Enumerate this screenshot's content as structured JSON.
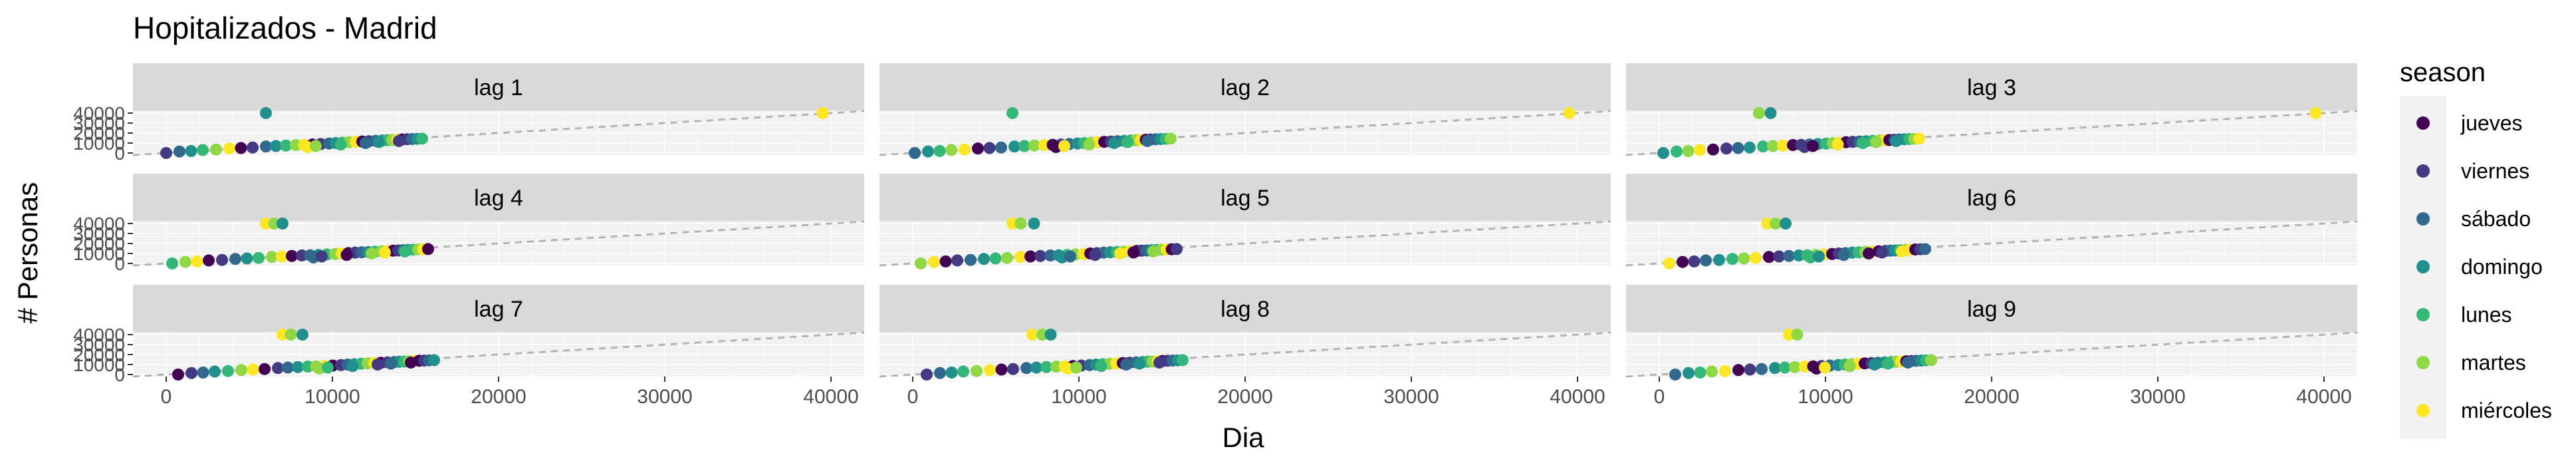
{
  "chart_data": {
    "type": "scatter",
    "title": "Hopitalizados - Madrid",
    "xlabel": "Dia",
    "ylabel": "# Personas",
    "xlim": [
      -2000,
      42000
    ],
    "ylim": [
      -2000,
      42000
    ],
    "x_ticks": [
      0,
      10000,
      20000,
      30000,
      40000
    ],
    "x_tick_labels": [
      "0",
      "10000",
      "20000",
      "30000",
      "40000"
    ],
    "y_ticks": [
      0,
      10000,
      20000,
      30000,
      40000
    ],
    "y_tick_labels": [
      "0",
      "10000",
      "20000",
      "30000",
      "40000"
    ],
    "grid": true,
    "reference_line": "y = x (dashed)",
    "legend": {
      "title": "season",
      "position": "right",
      "entries": [
        "jueves",
        "viernes",
        "sábado",
        "domingo",
        "lunes",
        "martes",
        "miércoles"
      ],
      "colors": [
        "#440154",
        "#443A83",
        "#31688E",
        "#21908C",
        "#35B779",
        "#8FD744",
        "#FDE725"
      ]
    },
    "panels": [
      {
        "label": "lag 1",
        "outliers": [
          {
            "x": 6000,
            "y": 40000,
            "s": 3
          },
          {
            "x": 39500,
            "y": 40000,
            "s": 6
          }
        ]
      },
      {
        "label": "lag 2",
        "outliers": [
          {
            "x": 6000,
            "y": 40000,
            "s": 4
          },
          {
            "x": 39500,
            "y": 40000,
            "s": 6
          }
        ]
      },
      {
        "label": "lag 3",
        "outliers": [
          {
            "x": 6000,
            "y": 40000,
            "s": 5
          },
          {
            "x": 6700,
            "y": 40000,
            "s": 3
          },
          {
            "x": 39500,
            "y": 40000,
            "s": 6
          }
        ]
      },
      {
        "label": "lag 4",
        "outliers": [
          {
            "x": 6000,
            "y": 40000,
            "s": 6
          },
          {
            "x": 6500,
            "y": 40000,
            "s": 5
          },
          {
            "x": 7000,
            "y": 40000,
            "s": 3
          }
        ]
      },
      {
        "label": "lag 5",
        "outliers": [
          {
            "x": 6000,
            "y": 40000,
            "s": 6
          },
          {
            "x": 6500,
            "y": 40000,
            "s": 5
          },
          {
            "x": 7300,
            "y": 40000,
            "s": 3
          }
        ]
      },
      {
        "label": "lag 6",
        "outliers": [
          {
            "x": 6500,
            "y": 40000,
            "s": 6
          },
          {
            "x": 7000,
            "y": 40000,
            "s": 5
          },
          {
            "x": 7600,
            "y": 40000,
            "s": 3
          }
        ]
      },
      {
        "label": "lag 7",
        "outliers": [
          {
            "x": 7000,
            "y": 40000,
            "s": 6
          },
          {
            "x": 7500,
            "y": 40000,
            "s": 5
          },
          {
            "x": 8200,
            "y": 40000,
            "s": 3
          }
        ]
      },
      {
        "label": "lag 8",
        "outliers": [
          {
            "x": 7200,
            "y": 40000,
            "s": 6
          },
          {
            "x": 7800,
            "y": 40000,
            "s": 5
          },
          {
            "x": 8300,
            "y": 40000,
            "s": 3
          }
        ]
      },
      {
        "label": "lag 9",
        "outliers": [
          {
            "x": 7800,
            "y": 40000,
            "s": 6
          },
          {
            "x": 8300,
            "y": 40000,
            "s": 5
          }
        ]
      }
    ],
    "base_points": [
      {
        "x": 0,
        "y": 0,
        "s": 1
      },
      {
        "x": 800,
        "y": 1500,
        "s": 2
      },
      {
        "x": 1500,
        "y": 2000,
        "s": 3
      },
      {
        "x": 2200,
        "y": 3000,
        "s": 4
      },
      {
        "x": 3000,
        "y": 3500,
        "s": 5
      },
      {
        "x": 3800,
        "y": 4500,
        "s": 6
      },
      {
        "x": 4500,
        "y": 5000,
        "s": 0
      },
      {
        "x": 5200,
        "y": 5500,
        "s": 1
      },
      {
        "x": 6000,
        "y": 6500,
        "s": 2
      },
      {
        "x": 6600,
        "y": 7000,
        "s": 3
      },
      {
        "x": 7200,
        "y": 7500,
        "s": 4
      },
      {
        "x": 7800,
        "y": 8000,
        "s": 5
      },
      {
        "x": 8300,
        "y": 8200,
        "s": 6
      },
      {
        "x": 8800,
        "y": 8500,
        "s": 0
      },
      {
        "x": 9300,
        "y": 9000,
        "s": 1
      },
      {
        "x": 9800,
        "y": 9500,
        "s": 2
      },
      {
        "x": 10200,
        "y": 10000,
        "s": 3
      },
      {
        "x": 10600,
        "y": 10300,
        "s": 4
      },
      {
        "x": 11000,
        "y": 10800,
        "s": 5
      },
      {
        "x": 11400,
        "y": 11200,
        "s": 6
      },
      {
        "x": 11800,
        "y": 11500,
        "s": 0
      },
      {
        "x": 12200,
        "y": 11800,
        "s": 1
      },
      {
        "x": 12600,
        "y": 12200,
        "s": 2
      },
      {
        "x": 13000,
        "y": 12500,
        "s": 3
      },
      {
        "x": 13300,
        "y": 12800,
        "s": 4
      },
      {
        "x": 13600,
        "y": 13000,
        "s": 5
      },
      {
        "x": 13900,
        "y": 13300,
        "s": 6
      },
      {
        "x": 14200,
        "y": 13600,
        "s": 0
      },
      {
        "x": 14500,
        "y": 13800,
        "s": 1
      },
      {
        "x": 14800,
        "y": 14000,
        "s": 2
      },
      {
        "x": 15100,
        "y": 14200,
        "s": 3
      },
      {
        "x": 15400,
        "y": 14400,
        "s": 4
      },
      {
        "x": 8500,
        "y": 6000,
        "s": 6
      },
      {
        "x": 9000,
        "y": 7000,
        "s": 5
      },
      {
        "x": 10500,
        "y": 8500,
        "s": 4
      },
      {
        "x": 12000,
        "y": 10000,
        "s": 2
      },
      {
        "x": 12800,
        "y": 11000,
        "s": 3
      },
      {
        "x": 14000,
        "y": 12000,
        "s": 1
      }
    ]
  }
}
